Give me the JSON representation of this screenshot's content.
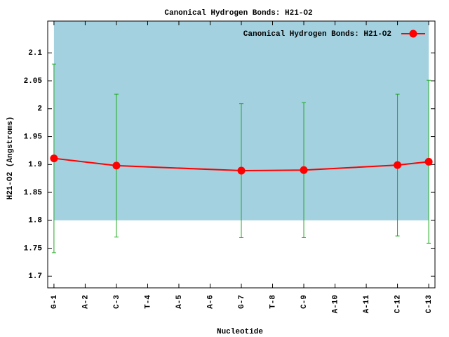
{
  "chart_data": {
    "type": "line",
    "title": "Canonical Hydrogen Bonds: H21-O2",
    "x_label": "Nucleotide",
    "y_label": "H21-O2 (Angstroms)",
    "x": [
      1,
      3,
      7,
      9,
      12,
      13
    ],
    "series": [
      {
        "name": "Canonical Hydrogen Bonds: H21-O2",
        "color": "#ff0000",
        "values": [
          1.911,
          1.898,
          1.889,
          1.89,
          1.899,
          1.905
        ],
        "errors": [
          0.169,
          0.128,
          0.12,
          0.121,
          0.127,
          0.146
        ],
        "error_color": "#22aa22"
      }
    ],
    "shade_range": [
      1.8,
      2.157
    ],
    "shade_color": "#a3d1df",
    "xlim": [
      0.8,
      13.2
    ],
    "xticks": [
      {
        "value": 1,
        "label": "G-1"
      },
      {
        "value": 2,
        "label": "A-2"
      },
      {
        "value": 3,
        "label": "C-3"
      },
      {
        "value": 4,
        "label": "T-4"
      },
      {
        "value": 5,
        "label": "A-5"
      },
      {
        "value": 6,
        "label": "A-6"
      },
      {
        "value": 7,
        "label": "G-7"
      },
      {
        "value": 8,
        "label": "T-8"
      },
      {
        "value": 9,
        "label": "C-9"
      },
      {
        "value": 10,
        "label": "A-10"
      },
      {
        "value": 11,
        "label": "A-11"
      },
      {
        "value": 12,
        "label": "C-12"
      },
      {
        "value": 13,
        "label": "C-13"
      }
    ],
    "ylim": [
      1.679,
      2.157
    ],
    "yticks": [
      1.7,
      1.75,
      1.8,
      1.85,
      1.9,
      1.95,
      2,
      2.05,
      2.1
    ],
    "legend": "top-right"
  }
}
